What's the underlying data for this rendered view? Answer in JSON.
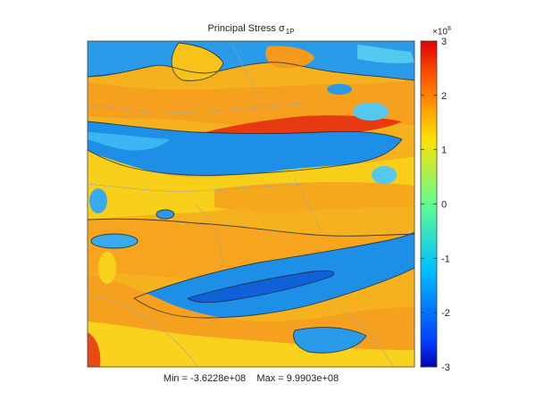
{
  "chart_data": {
    "type": "heatmap",
    "title": "Principal Stress σ",
    "title_subscript": "1P",
    "colorbar": {
      "min": -3,
      "max": 3,
      "ticks": [
        3,
        2,
        1,
        0,
        -1,
        -2,
        -3
      ],
      "tick_labels": [
        "3",
        "2",
        "1",
        "0",
        "-1",
        "-2",
        "-3"
      ],
      "exponent_label": "×10",
      "exponent": "8",
      "colormap": "jet"
    },
    "footer": {
      "min_text": "Min = -3.6228e+08",
      "max_text": "Max = 9.9903e+08"
    },
    "grid": false
  }
}
